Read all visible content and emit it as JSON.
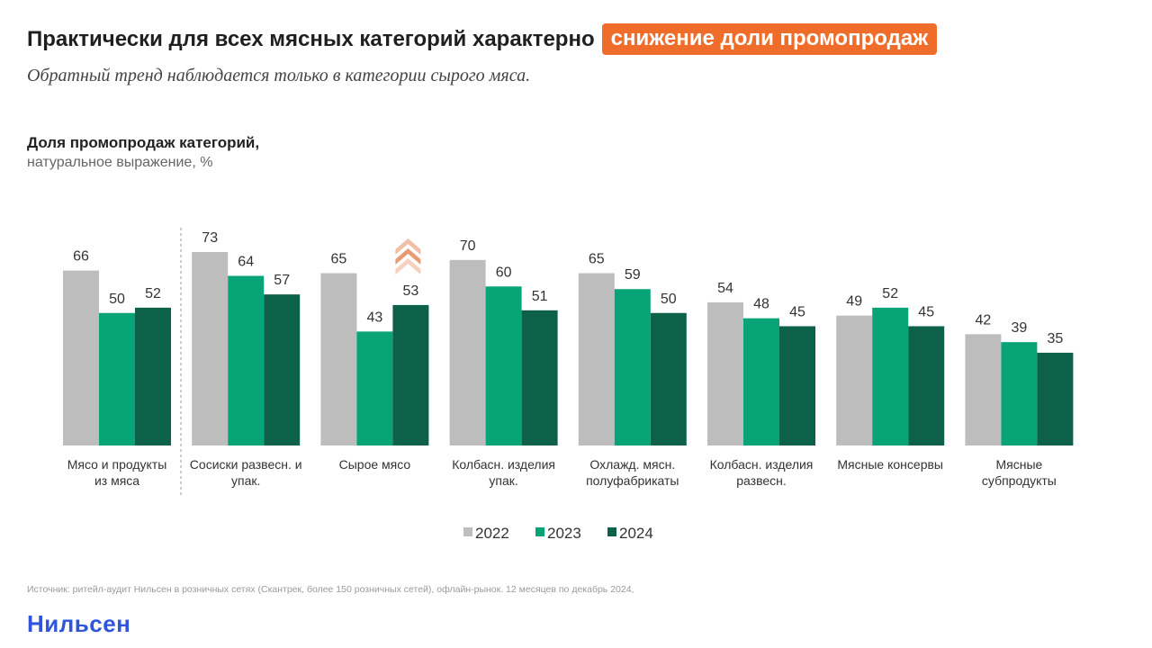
{
  "header": {
    "title_main": "Практически для всех мясных категорий характерно",
    "title_highlight": "снижение доли промопродаж",
    "subtitle": "Обратный тренд наблюдается только в категории сырого мяса."
  },
  "colors": {
    "highlight": "#ef6c2a",
    "series_2022": "#bdbdbd",
    "series_2023": "#08a477",
    "series_2024": "#0e6149",
    "up_arrows": "#e58a5e",
    "logo": "#2f56d8"
  },
  "chart_data": {
    "type": "bar",
    "title": "Доля промопродаж категорий,",
    "subtitle": "натуральное выражение, %",
    "categories": [
      [
        "Мясо и продукты",
        "из мяса"
      ],
      [
        "Сосиски развесн. и",
        "упак."
      ],
      [
        "Сырое мясо"
      ],
      [
        "Колбасн. изделия",
        "упак."
      ],
      [
        "Охлажд. мясн.",
        "полуфабрикаты"
      ],
      [
        "Колбасн. изделия",
        "развесн."
      ],
      [
        "Мясные консервы"
      ],
      [
        "Мясные",
        "субпродукты"
      ]
    ],
    "series": [
      {
        "name": "2022",
        "values": [
          66,
          73,
          65,
          70,
          65,
          54,
          49,
          42
        ]
      },
      {
        "name": "2023",
        "values": [
          50,
          64,
          43,
          60,
          59,
          48,
          52,
          39
        ]
      },
      {
        "name": "2024",
        "values": [
          52,
          57,
          53,
          51,
          50,
          45,
          45,
          35
        ]
      }
    ],
    "ylim": [
      0,
      73
    ],
    "grid": false,
    "legend_position": "bottom",
    "annotations": {
      "separator_after_category": 0,
      "up_trend_marker_category": 2
    }
  },
  "footer": {
    "source": "Источник: ритейл-аудит Нильсен в розничных сетях (Скантрек, более 150 розничных сетей), офлайн-рынок. 12 месяцев по декабрь 2024,",
    "logo": "Нильсен"
  }
}
